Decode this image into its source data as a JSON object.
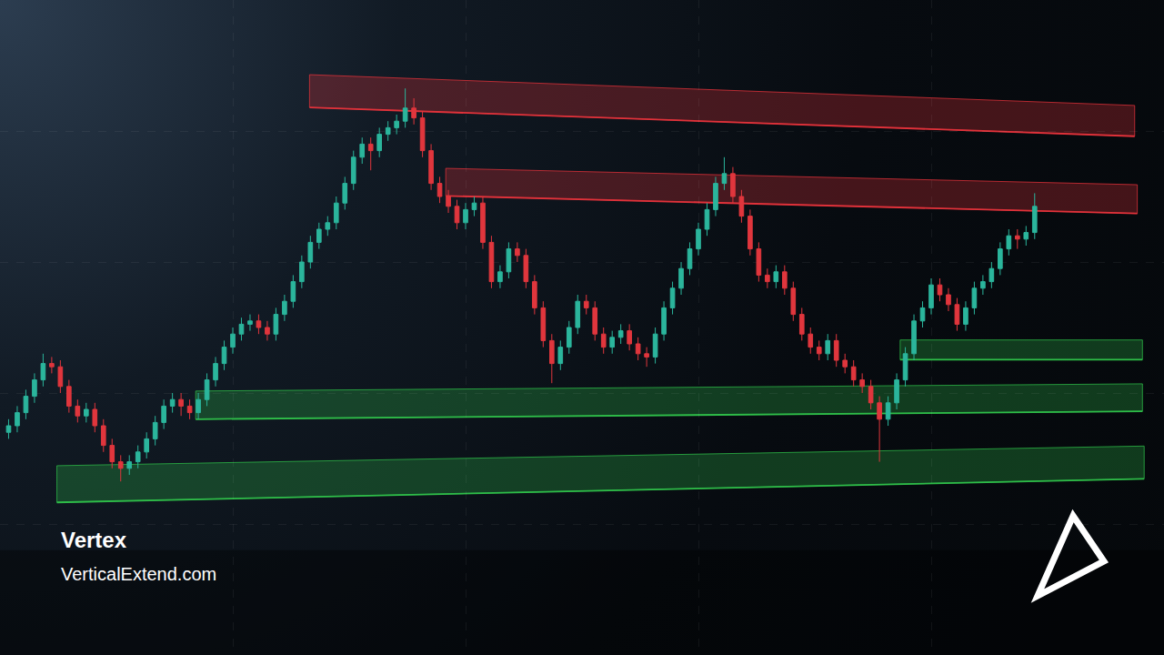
{
  "chart_data": {
    "type": "candlestick",
    "annotations": [
      "Vertex",
      "VerticalExtend.com"
    ],
    "x": [
      0,
      1,
      2,
      3,
      4,
      5,
      6,
      7,
      8,
      9,
      10,
      11,
      12,
      13,
      14,
      15,
      16,
      17,
      18,
      19,
      20,
      21,
      22,
      23,
      24,
      25,
      26,
      27,
      28,
      29,
      30,
      31,
      32,
      33,
      34,
      35,
      36,
      37,
      38,
      39,
      40,
      41,
      42,
      43,
      44,
      45,
      46,
      47,
      48,
      49,
      50,
      51,
      52,
      53,
      54,
      55,
      56,
      57,
      58,
      59,
      60,
      61,
      62,
      63,
      64,
      65,
      66,
      67,
      68,
      69,
      70,
      71,
      72,
      73,
      74,
      75,
      76,
      77,
      78,
      79,
      80,
      81,
      82,
      83,
      84,
      85,
      86,
      87,
      88,
      89,
      90,
      91,
      92,
      93,
      94,
      95,
      96,
      97,
      98,
      99,
      100,
      101,
      102,
      103,
      104,
      105,
      106,
      107,
      108,
      109,
      110,
      111,
      112,
      113,
      114,
      115,
      116,
      117,
      118,
      119
    ],
    "open": [
      34,
      35,
      37,
      39.5,
      42,
      44.5,
      44,
      41,
      38,
      36.5,
      37.5,
      35,
      32,
      29.5,
      28.5,
      29.5,
      31,
      33,
      35.5,
      38,
      39,
      38,
      37,
      39,
      42,
      44.5,
      47,
      49,
      50.5,
      51,
      50,
      49,
      52,
      54,
      57,
      60,
      63,
      65,
      66,
      69,
      72,
      76,
      78,
      77,
      79.5,
      80.5,
      81.5,
      83.5,
      82,
      77,
      72,
      70,
      68.5,
      66,
      68,
      69,
      63,
      57,
      58.5,
      62,
      61,
      57,
      53,
      48,
      44.5,
      47,
      50,
      54,
      53,
      49,
      47,
      48.5,
      49.5,
      47.5,
      46,
      45.5,
      49,
      53,
      56,
      59,
      62,
      65,
      68,
      72,
      73.5,
      70,
      67,
      62,
      58,
      57,
      58.5,
      56,
      52,
      49,
      47,
      46,
      48,
      45,
      44,
      42,
      41,
      38.5,
      36,
      38.5,
      42,
      46,
      51,
      53,
      56.5,
      55,
      53.5,
      50.5,
      53,
      56,
      57,
      59,
      62,
      64,
      63.5,
      64.5
    ],
    "high": [
      36,
      38,
      40.5,
      43,
      46,
      45.5,
      45,
      42,
      39,
      38.5,
      38.5,
      36,
      33,
      30.5,
      30.5,
      32,
      34,
      36.5,
      39,
      40,
      40,
      39,
      40,
      43,
      45.5,
      48,
      50,
      51.5,
      52,
      52,
      51,
      53,
      55,
      58,
      61,
      64,
      66,
      67,
      70,
      73,
      77,
      79,
      79,
      80.5,
      81.5,
      82.5,
      86.5,
      85,
      83,
      78,
      73,
      71,
      69.5,
      69,
      70,
      70,
      64,
      59.5,
      63,
      63,
      62,
      58,
      54,
      49,
      48,
      51,
      55,
      55,
      54,
      50,
      49.5,
      50.5,
      50.5,
      48.5,
      47,
      50,
      54,
      57,
      60,
      63,
      66,
      69,
      73,
      76,
      74.5,
      71,
      68,
      63,
      59,
      59.5,
      59.5,
      57,
      53,
      50,
      48,
      49,
      49,
      46,
      45,
      43,
      42,
      39.5,
      39.5,
      43,
      47,
      52,
      54,
      57.5,
      57.5,
      56,
      54.5,
      54,
      57,
      58,
      60,
      63,
      65,
      65,
      65.5,
      70.5
    ],
    "low": [
      33,
      34,
      36,
      38.5,
      41,
      43,
      40,
      37,
      35.5,
      35.5,
      34,
      31,
      28.5,
      26.5,
      27.5,
      28.5,
      30,
      32,
      34.5,
      37,
      36.5,
      36,
      36,
      38,
      41,
      43.5,
      46,
      48,
      49.5,
      49,
      48,
      48,
      51,
      53,
      56,
      59,
      62,
      64,
      65,
      68,
      71,
      75,
      74,
      76,
      78.5,
      79.5,
      80.5,
      81,
      76,
      71,
      69,
      67.5,
      65,
      65,
      67,
      62,
      56,
      56,
      57.5,
      60,
      56,
      52,
      47,
      41.5,
      43.5,
      46,
      49,
      52,
      48,
      46,
      46,
      47.5,
      46.5,
      45,
      44,
      44.5,
      48,
      52,
      55,
      58,
      61,
      64,
      67,
      71,
      69,
      66,
      61,
      57,
      56,
      56,
      55,
      51,
      48,
      46,
      45,
      45,
      44,
      43,
      41,
      40,
      37.5,
      29.5,
      35,
      37.5,
      41,
      45,
      50,
      52,
      54,
      52.5,
      49.5,
      49.5,
      52,
      55,
      56,
      58,
      61,
      62,
      62.5,
      63.5
    ],
    "close": [
      35,
      37,
      39.5,
      42,
      44.5,
      44,
      41,
      38,
      36.5,
      37.5,
      35,
      32,
      29.5,
      28.5,
      29.5,
      31,
      33,
      35.5,
      38,
      39,
      38,
      37,
      39,
      42,
      44.5,
      47,
      49,
      50.5,
      51,
      50,
      49,
      52,
      54,
      57,
      60,
      63,
      65,
      66,
      69,
      72,
      76,
      78,
      77,
      79.5,
      80.5,
      81.5,
      83.5,
      82,
      77,
      72,
      70,
      68.5,
      66,
      68,
      69,
      63,
      57,
      58.5,
      62,
      61,
      57,
      53,
      48,
      44.5,
      47,
      50,
      54,
      53,
      49,
      47,
      48.5,
      49.5,
      47.5,
      46,
      45.5,
      49,
      53,
      56,
      59,
      62,
      65,
      68,
      72,
      73.5,
      70,
      67,
      62,
      58,
      57,
      58.5,
      56,
      52,
      49,
      47,
      46,
      48,
      45,
      44,
      42,
      41,
      38.5,
      36,
      38.5,
      42,
      46,
      51,
      53,
      56.5,
      55,
      53.5,
      50.5,
      53,
      56,
      57,
      59,
      62,
      64,
      63.5,
      64.5,
      68.5
    ],
    "zones": [
      {
        "color": "#e5333b",
        "start": {
          "x": 34.9,
          "low": 83.6,
          "high": 88.6
        },
        "end": {
          "x": 130.6,
          "low": 79.2,
          "high": 83.9
        }
      },
      {
        "color": "#e5333b",
        "start": {
          "x": 50.7,
          "low": 70.1,
          "high": 74.3
        },
        "end": {
          "x": 130.9,
          "low": 67.4,
          "high": 71.8
        }
      },
      {
        "color": "#2fc04a",
        "start": {
          "x": 103.4,
          "low": 45.1,
          "high": 48.1
        },
        "end": {
          "x": 131.5,
          "low": 45.1,
          "high": 48.1
        }
      },
      {
        "color": "#2fc04a",
        "start": {
          "x": 21.7,
          "low": 36.0,
          "high": 40.3
        },
        "end": {
          "x": 131.5,
          "low": 37.2,
          "high": 41.4
        }
      },
      {
        "color": "#2fc04a",
        "start": {
          "x": 5.6,
          "low": 23.3,
          "high": 28.9
        },
        "end": {
          "x": 131.7,
          "low": 26.9,
          "high": 31.9
        }
      }
    ],
    "xlim": [
      -1,
      134
    ],
    "xticks": [
      -1,
      26,
      53,
      80,
      107,
      134
    ],
    "ylim": [
      0,
      100
    ],
    "yticks": [
      0,
      20,
      40,
      60,
      80,
      100
    ],
    "grid": true,
    "tick_labels": false
  }
}
